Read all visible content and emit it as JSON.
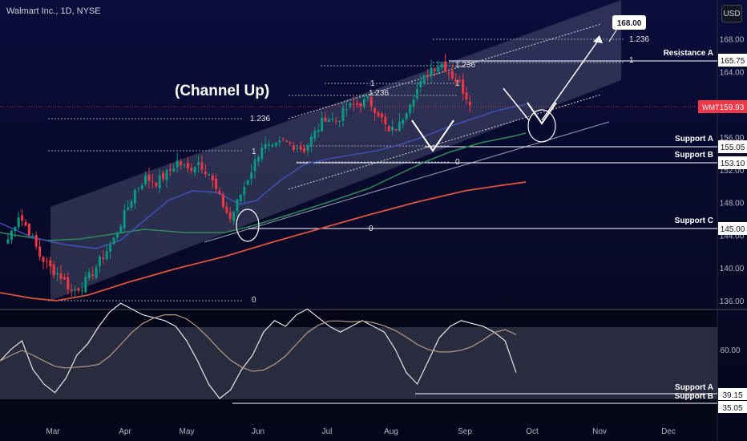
{
  "header": {
    "symbol": "Walmart Inc.",
    "interval": "1D",
    "exchange": "NYSE",
    "currency": "USD"
  },
  "colors": {
    "bg_top": "#0a0d3a",
    "bg_bottom": "#05061a",
    "channel": "#8a8fa8",
    "candle_up": "#089981",
    "candle_down": "#f23645",
    "ma50": "#3f51b5",
    "ma100": "#2e8b57",
    "ma200": "#e0533e",
    "price_tag": "#f23645",
    "rsi_line": "#e6e6e6",
    "rsi_ma": "#b79a86"
  },
  "chart_data": {
    "type": "candlestick",
    "title": "",
    "x_axis": {
      "ticks": [
        "Mar",
        "Apr",
        "May",
        "Jun",
        "Jul",
        "Aug",
        "Sep",
        "Oct",
        "Nov",
        "Dec"
      ]
    },
    "y_axis": {
      "ylim": [
        135,
        171
      ],
      "ticks": [
        136.0,
        140.0,
        144.0,
        148.0,
        152.0,
        156.0,
        160.0,
        164.0,
        168.0
      ]
    },
    "last_price": {
      "symbol": "WMT",
      "value": 159.93
    },
    "levels": [
      {
        "name": "Resistance A",
        "value": 165.75,
        "label": "165.75"
      },
      {
        "name": "Support A",
        "value": 155.05,
        "label": "155.05"
      },
      {
        "name": "Support B",
        "value": 153.1,
        "label": "153.10"
      },
      {
        "name": "Support C",
        "value": 145.0,
        "label": "145.00"
      }
    ],
    "target": {
      "value": 168.0,
      "label": "168.00"
    },
    "annotations": {
      "pattern": "(Channel Up)"
    },
    "fib_labels": [
      "1.236",
      "1",
      "0",
      "1.236",
      "1",
      "0",
      "1.236",
      "1",
      "0",
      "1.236",
      "1",
      "0",
      "1.236",
      "1"
    ],
    "ohlc_anchor_closes": [
      [
        0,
        143.5
      ],
      [
        3,
        146.5
      ],
      [
        6,
        144.5
      ],
      [
        9,
        141.5
      ],
      [
        12,
        140.0
      ],
      [
        15,
        139.0
      ],
      [
        18,
        137.2
      ],
      [
        21,
        137.8
      ],
      [
        24,
        139.5
      ],
      [
        27,
        141.5
      ],
      [
        30,
        143.5
      ],
      [
        33,
        146.5
      ],
      [
        36,
        149.5
      ],
      [
        39,
        151.0
      ],
      [
        42,
        150.5
      ],
      [
        45,
        151.5
      ],
      [
        48,
        153.0
      ],
      [
        51,
        152.0
      ],
      [
        54,
        153.0
      ],
      [
        57,
        151.5
      ],
      [
        60,
        148.5
      ],
      [
        63,
        146.0
      ],
      [
        66,
        149.0
      ],
      [
        69,
        152.0
      ],
      [
        72,
        155.0
      ],
      [
        75,
        154.5
      ],
      [
        78,
        155.5
      ],
      [
        81,
        155.0
      ],
      [
        84,
        154.5
      ],
      [
        87,
        156.5
      ],
      [
        90,
        158.5
      ],
      [
        93,
        158.0
      ],
      [
        96,
        159.5
      ],
      [
        99,
        160.0
      ],
      [
        102,
        160.5
      ],
      [
        105,
        159.0
      ],
      [
        108,
        156.5
      ],
      [
        111,
        157.5
      ],
      [
        114,
        160.5
      ],
      [
        117,
        162.5
      ],
      [
        120,
        164.5
      ],
      [
        123,
        165.0
      ],
      [
        126,
        163.5
      ],
      [
        128,
        162.5
      ],
      [
        130,
        161.0
      ],
      [
        131,
        159.93
      ]
    ],
    "rsi": {
      "ticks": [
        60.0
      ],
      "levels": [
        {
          "name": "Support A",
          "value": 39.15,
          "label": "39.15"
        },
        {
          "name": "Support B",
          "value": 35.05,
          "label": "35.05"
        }
      ],
      "values": [
        48,
        52,
        55,
        45,
        40,
        37,
        42,
        50,
        54,
        60,
        65,
        68,
        66,
        64,
        63,
        62,
        60,
        55,
        48,
        40,
        35,
        38,
        45,
        50,
        58,
        62,
        60,
        64,
        66,
        63,
        60,
        58,
        60,
        62,
        60,
        58,
        52,
        44,
        40,
        48,
        56,
        60,
        62,
        61,
        60,
        58,
        55,
        44
      ]
    }
  },
  "right_labels": {
    "resistance_a": "Resistance A",
    "support_a": "Support A",
    "support_b": "Support B",
    "support_c": "Support C",
    "rsi_support_a": "Support A",
    "rsi_support_b": "Support B"
  }
}
